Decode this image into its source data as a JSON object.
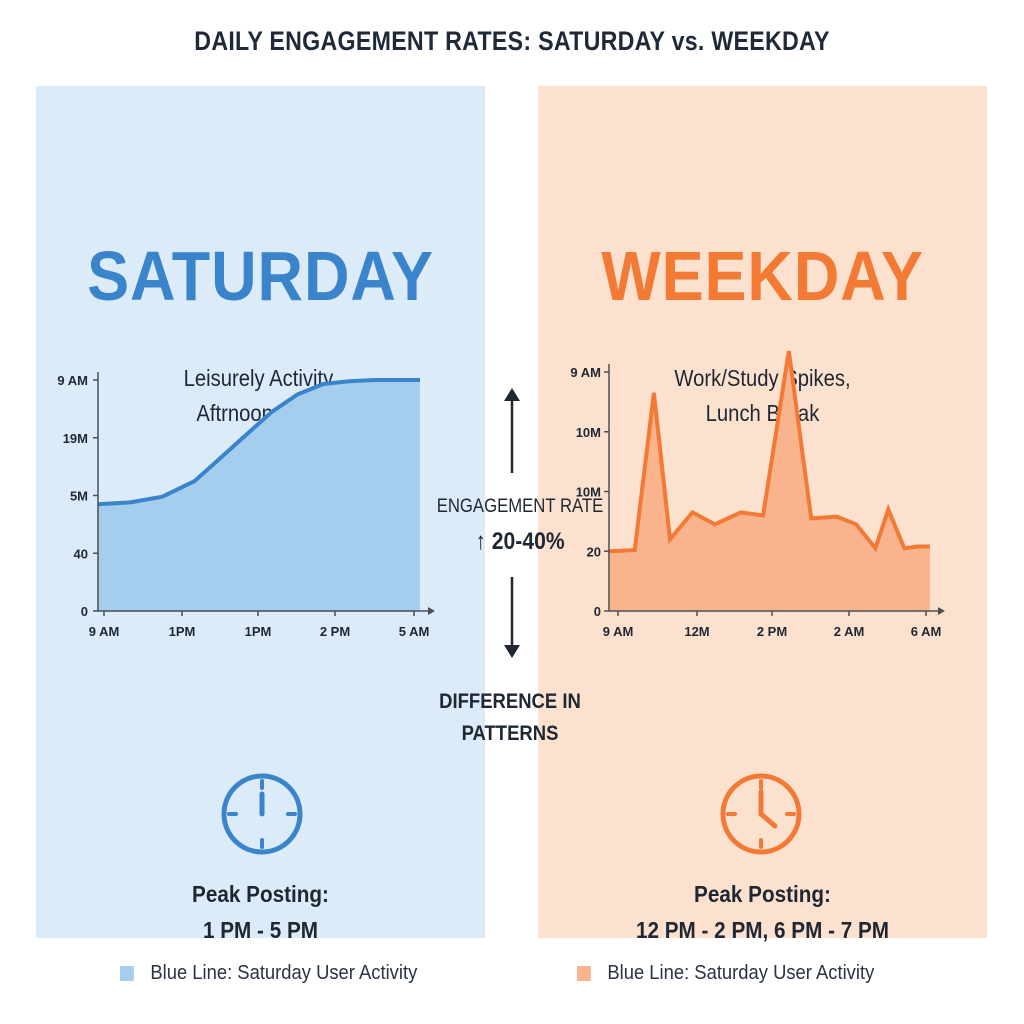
{
  "title": "DAILY ENGAGEMENT RATES: SATURDAY vs. WEEKDAY",
  "colors": {
    "saturday_accent": "#3a84cc",
    "saturday_bg": "#dcebf8",
    "saturday_fill": "#a4cdee",
    "weekday_accent": "#f27a35",
    "weekday_bg": "#fce1cf",
    "weekday_fill": "#f9b48d",
    "text": "#1f2733"
  },
  "saturday": {
    "heading": "SATURDAY",
    "subtitle_line1": "Leisurely Activity,",
    "subtitle_line2": "Aftrnoon Peak",
    "peak_label": "Peak Posting:",
    "peak_value": "1 PM - 5 PM",
    "icon": "clock-icon"
  },
  "weekday": {
    "heading": "WEEKDAY",
    "subtitle_line1": "Work/Study Spikes,",
    "subtitle_line2": "Lunch Break",
    "peak_label": "Peak Posting:",
    "peak_value": "12 PM - 2 PM, 6 PM - 7 PM",
    "icon": "clock-icon"
  },
  "center": {
    "engagement_label": "ENGAGEMENT RATE",
    "engagement_value": "↑ 20-40%",
    "difference_line1": "DIFFERENCE IN",
    "difference_line2": "PATTERNS"
  },
  "legend": [
    {
      "label": "Blue Line: Saturday User Activity",
      "color": "#a4cdee"
    },
    {
      "label": "Blue Line: Saturday User Activity",
      "color": "#f9b48d"
    }
  ],
  "chart_data": [
    {
      "type": "area",
      "series_color": "#3a84cc",
      "fill_color": "#a4cdee",
      "x_ticks": [
        "9 AM",
        "1PM",
        "1PM",
        "2 PM",
        "5 AM"
      ],
      "y_ticks": [
        "0",
        "40",
        "5M",
        "19M",
        "9 AM"
      ],
      "x": [
        0,
        0.1,
        0.2,
        0.3,
        0.38,
        0.46,
        0.54,
        0.62,
        0.7,
        0.78,
        0.86,
        0.93,
        1.0
      ],
      "y": [
        1.85,
        1.88,
        1.98,
        2.25,
        2.65,
        3.05,
        3.45,
        3.75,
        3.93,
        3.98,
        4.0,
        4.0,
        4.0
      ],
      "ylim": [
        0,
        4
      ],
      "grid": false
    },
    {
      "type": "area",
      "series_color": "#f27a35",
      "fill_color": "#f9b48d",
      "x_ticks": [
        "9 AM",
        "12M",
        "2 PM",
        "2 AM",
        "6 AM"
      ],
      "y_ticks": [
        "0",
        "20",
        "10M",
        "10M",
        "9 AM"
      ],
      "x": [
        0,
        0.08,
        0.14,
        0.19,
        0.26,
        0.33,
        0.41,
        0.48,
        0.56,
        0.63,
        0.71,
        0.77,
        0.83,
        0.87,
        0.92,
        0.96,
        1.0
      ],
      "y": [
        1.0,
        1.02,
        3.65,
        1.2,
        1.65,
        1.45,
        1.65,
        1.6,
        4.35,
        1.55,
        1.58,
        1.45,
        1.05,
        1.7,
        1.05,
        1.08,
        1.08
      ],
      "ylim": [
        0,
        4
      ],
      "grid": false
    }
  ]
}
